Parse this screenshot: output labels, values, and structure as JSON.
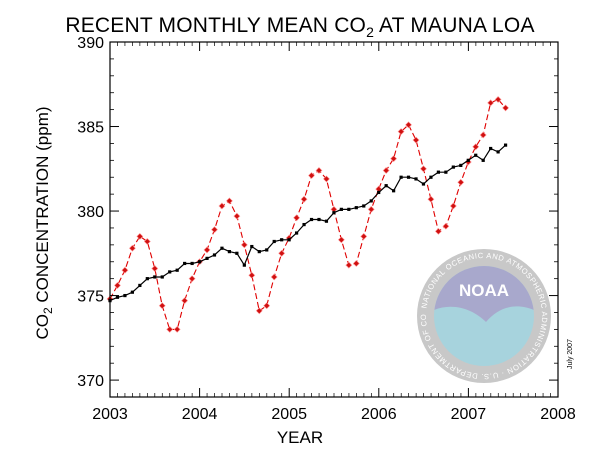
{
  "title_main": "RECENT MONTHLY MEAN CO",
  "title_sub": "2",
  "title_tail": " AT MAUNA LOA",
  "date_stamp": "July 2007",
  "noaa_logo": {
    "text": "NOAA",
    "ring_text": "NATIONAL OCEANIC AND ATMOSPHERIC ADMINISTRATION · U.S. DEPARTMENT OF COMMERCE",
    "colors": {
      "sky": "#a8a8cc",
      "sea": "#a7d3dd",
      "ring": "#c8c8c8",
      "ring_text": "#ffffff"
    }
  },
  "chart_data": {
    "type": "line",
    "title": "RECENT MONTHLY MEAN CO2 AT MAUNA LOA",
    "xlabel": "YEAR",
    "ylabel_main": "CO",
    "ylabel_sub": "2",
    "ylabel_tail": " CONCENTRATION (ppm)",
    "xlim": [
      2003,
      2008
    ],
    "ylim": [
      369,
      390
    ],
    "x_ticks": [
      2003,
      2004,
      2005,
      2006,
      2007,
      2008
    ],
    "y_ticks": [
      370,
      375,
      380,
      385,
      390
    ],
    "grid": false,
    "x_start": 2003.0,
    "x_step": 0.0833,
    "series": [
      {
        "style": "dashed-diamond",
        "color": "#e00000",
        "marker_color": "#d01010",
        "values": [
          374.8,
          375.6,
          376.5,
          377.8,
          378.5,
          378.2,
          376.6,
          374.4,
          373.0,
          373.0,
          374.7,
          376.0,
          377.0,
          377.7,
          378.9,
          380.3,
          380.6,
          379.7,
          378.0,
          376.2,
          374.1,
          374.4,
          376.1,
          377.5,
          378.4,
          379.6,
          380.7,
          382.1,
          382.4,
          381.9,
          380.1,
          378.3,
          376.8,
          376.9,
          378.5,
          380.1,
          381.3,
          382.4,
          383.1,
          384.7,
          385.1,
          384.2,
          382.5,
          380.7,
          378.8,
          379.1,
          380.3,
          381.7,
          382.9,
          383.8,
          384.5,
          386.4,
          386.6,
          386.1
        ]
      },
      {
        "style": "solid-square",
        "color": "#000000",
        "marker_color": "#000000",
        "values": [
          374.7,
          374.9,
          375.0,
          375.2,
          375.6,
          376.0,
          376.1,
          376.1,
          376.4,
          376.5,
          376.9,
          376.9,
          377.0,
          377.2,
          377.4,
          377.8,
          377.6,
          377.5,
          376.8,
          377.9,
          377.6,
          377.7,
          378.2,
          378.3,
          378.3,
          378.7,
          379.2,
          379.5,
          379.5,
          379.4,
          379.9,
          380.1,
          380.1,
          380.2,
          380.3,
          380.6,
          381.1,
          381.5,
          381.2,
          382.0,
          382.0,
          381.9,
          381.6,
          382.0,
          382.3,
          382.3,
          382.6,
          382.7,
          383.0,
          383.3,
          383.0,
          383.7,
          383.5,
          383.9
        ]
      }
    ]
  }
}
